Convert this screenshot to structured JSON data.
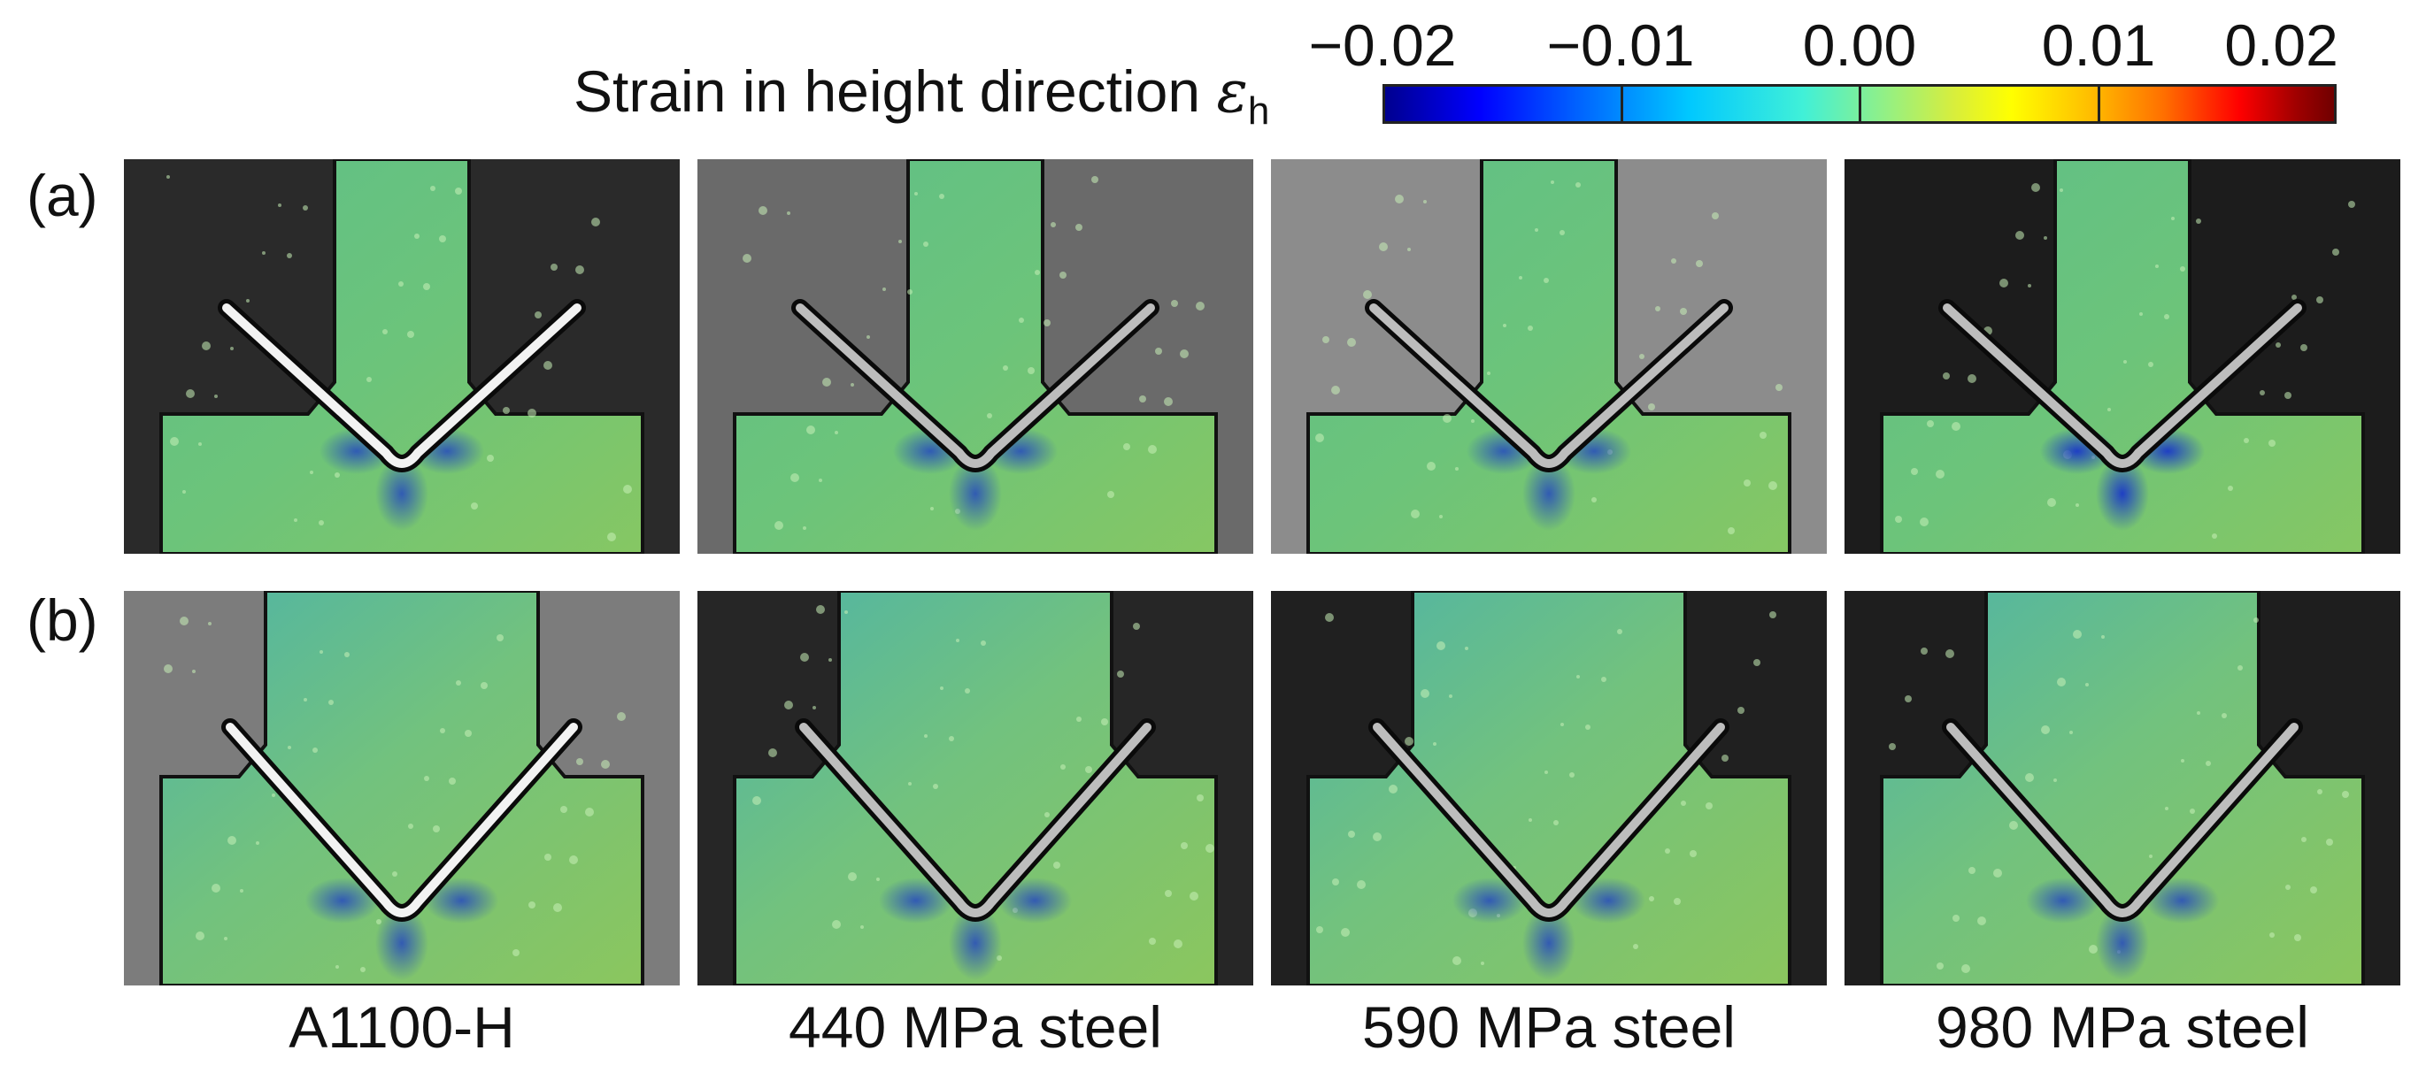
{
  "colorbar": {
    "label": "Strain in height direction",
    "symbol": "ε",
    "subscript": "h",
    "ticks": [
      "−0.02",
      "−0.01",
      "0.00",
      "0.01",
      "0.02"
    ],
    "range": [
      -0.02,
      0.02
    ]
  },
  "rows": [
    {
      "label": "(a)"
    },
    {
      "label": "(b)"
    }
  ],
  "columns": [
    {
      "label": "A1100-H"
    },
    {
      "label": "440 MPa steel"
    },
    {
      "label": "590 MPa steel"
    },
    {
      "label": "980 MPa steel"
    }
  ],
  "panel_backgrounds": [
    [
      "#2a2a2a",
      "#6a6a6a",
      "#8c8c8c",
      "#1c1c1c"
    ],
    [
      "#7c7c7c",
      "#262626",
      "#202020",
      "#1e1e1e"
    ]
  ]
}
